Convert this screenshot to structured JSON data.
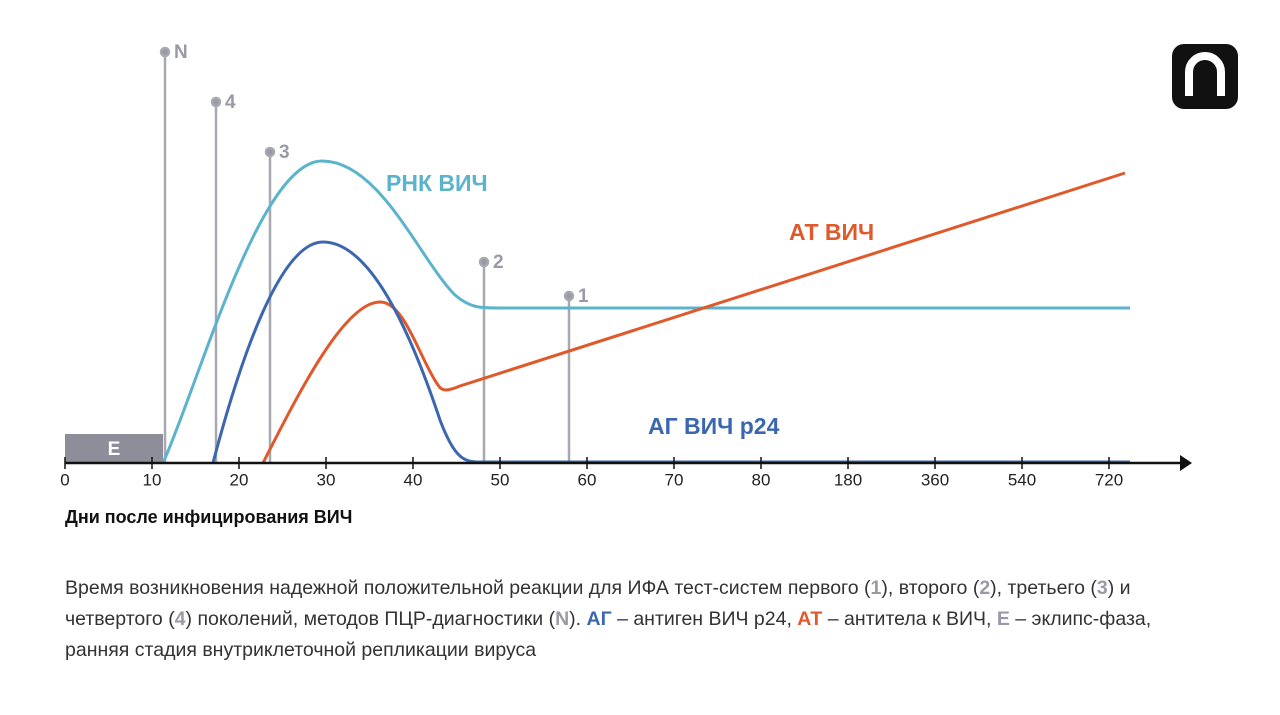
{
  "markers": [
    "N",
    "4",
    "3",
    "2",
    "1"
  ],
  "curve_labels": {
    "rna": "РНК ВИЧ",
    "at": "АТ ВИЧ",
    "ag": "АГ ВИЧ p24"
  },
  "eclipse": "E",
  "x_axis": {
    "ticks": [
      "0",
      "10",
      "20",
      "30",
      "40",
      "50",
      "60",
      "70",
      "80",
      "180",
      "360",
      "540",
      "720"
    ],
    "title": "Дни после инфицирования ВИЧ"
  },
  "caption": [
    "Время возникновения надежной положительной реакции для ИФА тест-систем первого (",
    "1",
    "), второго (",
    "2",
    "), третьего (",
    "3",
    ") и четвертого (",
    "4",
    ") поколений, методов ПЦР-диагностики (",
    "N",
    "). ",
    "АГ",
    " – антиген ВИЧ p24, ",
    "АТ",
    " – антитела к ВИЧ, ",
    "E",
    " – эклипс-фаза, ранняя стадия внутриклеточной репликации вируса"
  ]
}
